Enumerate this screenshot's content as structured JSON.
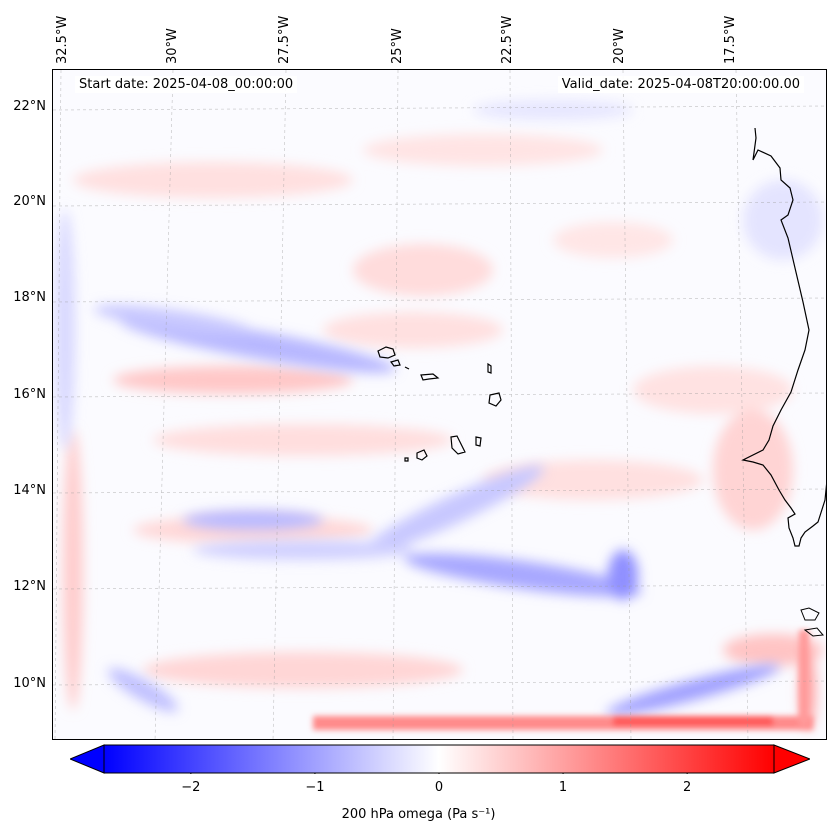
{
  "map": {
    "start_date": "Start date: 2025-04-08_00:00:00",
    "valid_date": "Valid_date: 2025-04-08T20:00:00.00",
    "lon_labels": [
      "32.5°W",
      "30°W",
      "27.5°W",
      "25°W",
      "22.5°W",
      "20°W",
      "17.5°W"
    ],
    "lat_labels": [
      "22°N",
      "20°N",
      "18°N",
      "16°N",
      "14°N",
      "12°N",
      "10°N"
    ],
    "extent": {
      "lon_min": -32.8,
      "lon_max": -16.1,
      "lat_min": 8.9,
      "lat_max": 22.7
    }
  },
  "colorbar": {
    "title": "200 hPa omega (Pa s⁻¹)",
    "ticks": [
      "−2",
      "−1",
      "0",
      "1",
      "2"
    ],
    "range": [
      -2.7,
      2.7
    ],
    "colors": {
      "negative": "#0000ff",
      "zero": "#ffffff",
      "positive": "#ff0000"
    }
  }
}
